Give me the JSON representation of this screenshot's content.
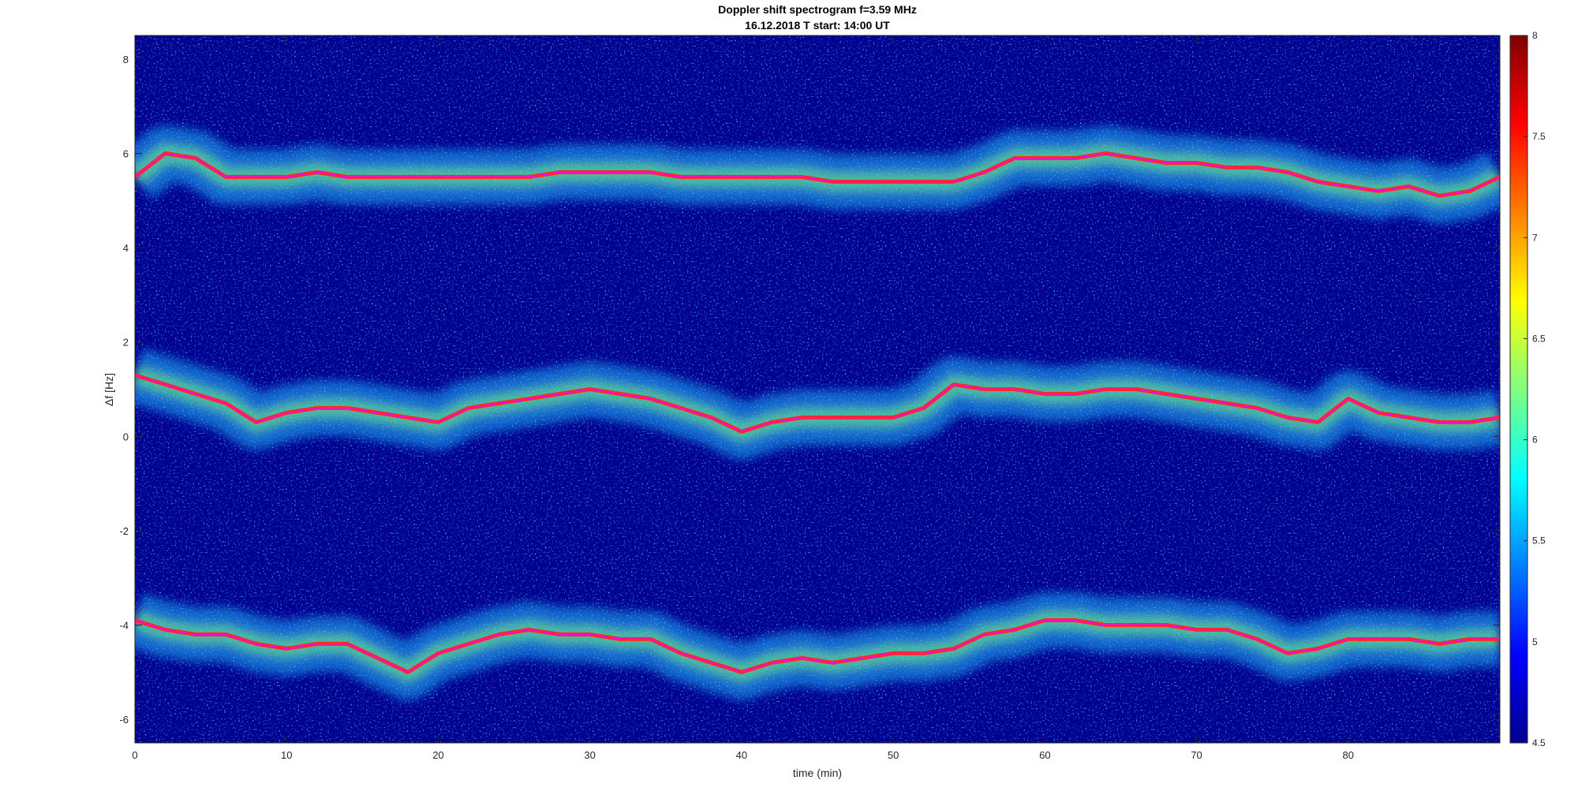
{
  "chart_data": {
    "type": "heatmap",
    "title": "Doppler shift spectrogram f=3.59 MHz",
    "subtitle": "16.12.2018   T start: 14:00 UT",
    "xlabel": "time (min)",
    "ylabel": "Δf [Hz]",
    "xlim": [
      0,
      90
    ],
    "ylim": [
      -6.5,
      8.5
    ],
    "xticks": [
      0,
      10,
      20,
      30,
      40,
      50,
      60,
      70,
      80
    ],
    "yticks": [
      -6,
      -4,
      -2,
      0,
      2,
      4,
      6,
      8
    ],
    "colorbar": {
      "colormap": "jet",
      "clim": [
        4.5,
        8
      ],
      "ticks": [
        4.5,
        5,
        5.5,
        6,
        6.5,
        7,
        7.5,
        8
      ]
    },
    "background_color": "#00008f",
    "trace_color": "#ff00ff",
    "series": [
      {
        "x": [
          0,
          2,
          4,
          6,
          8,
          10,
          12,
          14,
          16,
          18,
          20,
          22,
          24,
          26,
          28,
          30,
          32,
          34,
          36,
          38,
          40,
          42,
          44,
          46,
          48,
          50,
          52,
          54,
          56,
          58,
          60,
          62,
          64,
          66,
          68,
          70,
          72,
          74,
          76,
          78,
          80,
          82,
          84,
          86,
          88,
          90
        ],
        "y": [
          5.5,
          6.0,
          5.9,
          5.5,
          5.5,
          5.5,
          5.6,
          5.5,
          5.5,
          5.5,
          5.5,
          5.5,
          5.5,
          5.5,
          5.6,
          5.6,
          5.6,
          5.6,
          5.5,
          5.5,
          5.5,
          5.5,
          5.5,
          5.4,
          5.4,
          5.4,
          5.4,
          5.4,
          5.6,
          5.9,
          5.9,
          5.9,
          6.0,
          5.9,
          5.8,
          5.8,
          5.7,
          5.7,
          5.6,
          5.4,
          5.3,
          5.2,
          5.3,
          5.1,
          5.2,
          5.5
        ]
      },
      {
        "x": [
          0,
          2,
          4,
          6,
          8,
          10,
          12,
          14,
          16,
          18,
          20,
          22,
          24,
          26,
          28,
          30,
          32,
          34,
          36,
          38,
          40,
          42,
          44,
          46,
          48,
          50,
          52,
          54,
          56,
          58,
          60,
          62,
          64,
          66,
          68,
          70,
          72,
          74,
          76,
          78,
          80,
          82,
          84,
          86,
          88,
          90
        ],
        "y": [
          1.3,
          1.1,
          0.9,
          0.7,
          0.3,
          0.5,
          0.6,
          0.6,
          0.5,
          0.4,
          0.3,
          0.6,
          0.7,
          0.8,
          0.9,
          1.0,
          0.9,
          0.8,
          0.6,
          0.4,
          0.1,
          0.3,
          0.4,
          0.4,
          0.4,
          0.4,
          0.6,
          1.1,
          1.0,
          1.0,
          0.9,
          0.9,
          1.0,
          1.0,
          0.9,
          0.8,
          0.7,
          0.6,
          0.4,
          0.3,
          0.8,
          0.5,
          0.4,
          0.3,
          0.3,
          0.4
        ]
      },
      {
        "x": [
          0,
          2,
          4,
          6,
          8,
          10,
          12,
          14,
          16,
          18,
          20,
          22,
          24,
          26,
          28,
          30,
          32,
          34,
          36,
          38,
          40,
          42,
          44,
          46,
          48,
          50,
          52,
          54,
          56,
          58,
          60,
          62,
          64,
          66,
          68,
          70,
          72,
          74,
          76,
          78,
          80,
          82,
          84,
          86,
          88,
          90
        ],
        "y": [
          -3.9,
          -4.1,
          -4.2,
          -4.2,
          -4.4,
          -4.5,
          -4.4,
          -4.4,
          -4.7,
          -5.0,
          -4.6,
          -4.4,
          -4.2,
          -4.1,
          -4.2,
          -4.2,
          -4.3,
          -4.3,
          -4.6,
          -4.8,
          -5.0,
          -4.8,
          -4.7,
          -4.8,
          -4.7,
          -4.6,
          -4.6,
          -4.5,
          -4.2,
          -4.1,
          -3.9,
          -3.9,
          -4.0,
          -4.0,
          -4.0,
          -4.1,
          -4.1,
          -4.3,
          -4.6,
          -4.5,
          -4.3,
          -4.3,
          -4.3,
          -4.4,
          -4.3,
          -4.3
        ]
      }
    ]
  }
}
